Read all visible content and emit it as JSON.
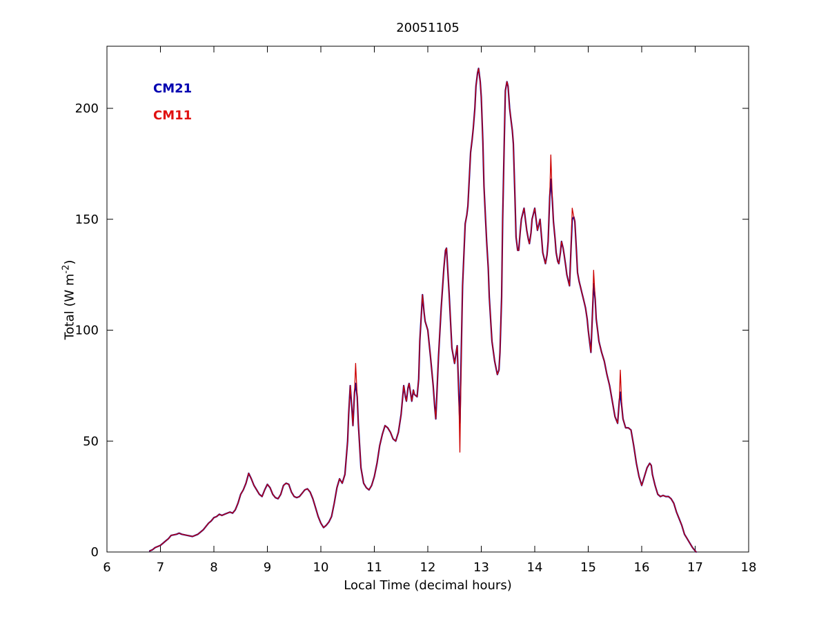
{
  "figure_bg": "#ffffff",
  "chart_data": {
    "type": "line",
    "title": "20051105",
    "xlabel": "Local Time (decimal hours)",
    "ylabel": {
      "prefix": "Total (W m",
      "sup": "-2",
      "suffix": ")"
    },
    "xlim": [
      6,
      18
    ],
    "ylim": [
      0,
      228
    ],
    "xticks": [
      6,
      7,
      8,
      9,
      10,
      11,
      12,
      13,
      14,
      15,
      16,
      17,
      18
    ],
    "yticks": [
      0,
      50,
      100,
      150,
      200
    ],
    "grid": false,
    "legend": {
      "position": "top-left-inside",
      "entries": [
        {
          "label": "CM21",
          "color": "#0000B0"
        },
        {
          "label": "CM11",
          "color": "#E01010"
        }
      ]
    },
    "x": [
      6.8,
      6.85,
      6.9,
      7.0,
      7.05,
      7.1,
      7.15,
      7.2,
      7.3,
      7.35,
      7.4,
      7.5,
      7.6,
      7.7,
      7.75,
      7.8,
      7.9,
      7.95,
      8.0,
      8.05,
      8.1,
      8.15,
      8.2,
      8.3,
      8.35,
      8.4,
      8.45,
      8.5,
      8.55,
      8.6,
      8.65,
      8.7,
      8.75,
      8.8,
      8.85,
      8.9,
      8.95,
      9.0,
      9.05,
      9.1,
      9.15,
      9.2,
      9.25,
      9.3,
      9.35,
      9.4,
      9.45,
      9.5,
      9.55,
      9.6,
      9.65,
      9.7,
      9.75,
      9.8,
      9.85,
      9.9,
      9.95,
      10.0,
      10.05,
      10.1,
      10.15,
      10.2,
      10.25,
      10.3,
      10.35,
      10.4,
      10.45,
      10.5,
      10.52,
      10.55,
      10.58,
      10.6,
      10.63,
      10.65,
      10.68,
      10.7,
      10.75,
      10.8,
      10.85,
      10.9,
      10.95,
      11.0,
      11.05,
      11.1,
      11.15,
      11.2,
      11.25,
      11.3,
      11.35,
      11.4,
      11.45,
      11.5,
      11.55,
      11.58,
      11.6,
      11.63,
      11.65,
      11.7,
      11.73,
      11.75,
      11.8,
      11.83,
      11.85,
      11.9,
      11.93,
      11.95,
      12.0,
      12.05,
      12.1,
      12.13,
      12.15,
      12.2,
      12.25,
      12.3,
      12.33,
      12.35,
      12.4,
      12.45,
      12.5,
      12.53,
      12.55,
      12.58,
      12.6,
      12.63,
      12.65,
      12.7,
      12.73,
      12.75,
      12.78,
      12.8,
      12.83,
      12.85,
      12.88,
      12.9,
      12.93,
      12.95,
      12.98,
      13.0,
      13.03,
      13.05,
      13.08,
      13.1,
      13.13,
      13.15,
      13.18,
      13.2,
      13.25,
      13.3,
      13.33,
      13.35,
      13.38,
      13.4,
      13.43,
      13.45,
      13.48,
      13.5,
      13.53,
      13.55,
      13.58,
      13.6,
      13.63,
      13.65,
      13.68,
      13.7,
      13.73,
      13.75,
      13.78,
      13.8,
      13.83,
      13.85,
      13.88,
      13.9,
      13.93,
      13.95,
      13.98,
      14.0,
      14.03,
      14.05,
      14.08,
      14.1,
      14.13,
      14.15,
      14.18,
      14.2,
      14.23,
      14.25,
      14.28,
      14.3,
      14.33,
      14.35,
      14.38,
      14.4,
      14.43,
      14.45,
      14.48,
      14.5,
      14.53,
      14.55,
      14.58,
      14.6,
      14.63,
      14.65,
      14.68,
      14.7,
      14.73,
      14.75,
      14.78,
      14.8,
      14.83,
      14.85,
      14.88,
      14.9,
      14.93,
      14.95,
      14.98,
      15.0,
      15.03,
      15.05,
      15.08,
      15.1,
      15.13,
      15.15,
      15.18,
      15.2,
      15.25,
      15.3,
      15.35,
      15.4,
      15.45,
      15.5,
      15.55,
      15.58,
      15.6,
      15.63,
      15.65,
      15.7,
      15.75,
      15.8,
      15.85,
      15.9,
      15.95,
      16.0,
      16.05,
      16.1,
      16.15,
      16.18,
      16.2,
      16.25,
      16.3,
      16.35,
      16.4,
      16.45,
      16.5,
      16.55,
      16.6,
      16.65,
      16.7,
      16.75,
      16.8,
      16.85,
      16.9,
      16.95,
      17.0,
      17.02
    ],
    "series": [
      {
        "name": "CM21",
        "color": "#0000A0",
        "values": [
          0.5,
          1,
          2,
          3,
          4,
          5,
          6,
          7.5,
          8,
          8.5,
          8,
          7.5,
          7,
          8,
          9,
          10,
          13,
          14,
          15.5,
          16,
          17,
          16.5,
          17,
          18,
          17.5,
          19,
          22,
          26,
          28,
          31,
          35.5,
          33,
          30,
          28,
          26,
          25,
          28,
          30.5,
          29,
          26,
          24.5,
          24,
          26,
          30,
          31,
          30.5,
          27,
          25,
          24.5,
          25,
          26.5,
          28,
          28.5,
          27,
          24,
          20,
          16,
          13,
          11,
          12,
          13.5,
          16,
          22,
          29,
          33,
          31,
          35,
          50,
          62,
          75,
          65,
          57,
          72,
          76,
          70,
          58,
          38,
          31,
          29,
          28,
          30,
          34,
          40,
          48,
          53,
          57,
          56,
          54,
          51,
          50,
          54,
          62,
          75,
          70,
          68,
          74,
          76,
          68,
          73,
          71,
          70,
          78,
          95,
          116,
          108,
          104,
          100,
          88,
          75,
          65,
          60,
          88,
          110,
          128,
          136,
          137,
          116,
          92,
          85,
          90,
          93,
          70,
          58,
          95,
          120,
          148,
          152,
          156,
          170,
          180,
          186,
          191,
          200,
          210,
          216,
          218,
          212,
          205,
          185,
          165,
          150,
          140,
          128,
          115,
          103,
          95,
          86,
          80,
          82,
          90,
          115,
          150,
          185,
          208,
          212,
          210,
          200,
          196,
          190,
          184,
          160,
          142,
          136,
          136,
          145,
          150,
          153,
          155,
          149,
          145,
          141,
          139,
          144,
          150,
          153,
          155,
          149,
          145,
          148,
          150,
          141,
          135,
          132,
          130,
          134,
          140,
          160,
          168,
          158,
          149,
          141,
          135,
          131,
          130,
          135,
          140,
          137,
          134,
          129,
          125,
          122,
          120,
          138,
          150,
          151,
          149,
          136,
          126,
          122,
          120,
          117,
          115,
          112,
          110,
          105,
          100,
          94,
          90,
          108,
          121,
          114,
          105,
          99,
          95,
          90,
          86,
          80,
          75,
          68,
          61,
          58,
          68,
          72,
          65,
          60,
          56,
          56,
          55,
          48,
          40,
          34,
          30,
          34,
          38,
          40,
          39,
          35,
          30,
          26,
          25,
          25.5,
          25,
          25,
          24,
          22,
          18,
          15,
          12,
          8,
          6,
          4,
          2,
          0.5,
          0
        ]
      },
      {
        "name": "CM11",
        "color": "#CC0000",
        "values": [
          0.5,
          1,
          2,
          3,
          4,
          5,
          6,
          7.5,
          8,
          8.5,
          8,
          7.5,
          7,
          8,
          9,
          10,
          13,
          14,
          15.5,
          16,
          17,
          16.5,
          17,
          18,
          17.5,
          19,
          22,
          26,
          28,
          31,
          35.5,
          33,
          30,
          28,
          26,
          25,
          28,
          30.5,
          29,
          26,
          24.5,
          24,
          26,
          30,
          31,
          30.5,
          27,
          25,
          24.5,
          25,
          26.5,
          28,
          28.5,
          27,
          24,
          20,
          16,
          13,
          11,
          12,
          13.5,
          16,
          22,
          29,
          33,
          31,
          35,
          50,
          62,
          75,
          65,
          57,
          72,
          85,
          70,
          58,
          38,
          31,
          29,
          28,
          30,
          34,
          40,
          48,
          53,
          57,
          56,
          54,
          51,
          50,
          54,
          62,
          75,
          70,
          68,
          74,
          76,
          68,
          73,
          71,
          70,
          78,
          95,
          116,
          108,
          104,
          100,
          88,
          75,
          65,
          60,
          88,
          110,
          128,
          136,
          137,
          116,
          92,
          85,
          90,
          93,
          70,
          45,
          95,
          120,
          148,
          152,
          156,
          170,
          180,
          186,
          191,
          200,
          210,
          216,
          218,
          212,
          205,
          185,
          165,
          150,
          140,
          128,
          115,
          103,
          95,
          86,
          80,
          82,
          90,
          115,
          150,
          185,
          208,
          212,
          210,
          200,
          196,
          190,
          184,
          160,
          142,
          136,
          136,
          145,
          150,
          153,
          155,
          149,
          145,
          141,
          139,
          144,
          150,
          153,
          155,
          149,
          145,
          148,
          150,
          141,
          135,
          132,
          130,
          134,
          140,
          160,
          179,
          158,
          149,
          141,
          135,
          131,
          130,
          135,
          140,
          137,
          134,
          129,
          125,
          122,
          120,
          138,
          155,
          151,
          149,
          136,
          126,
          122,
          120,
          117,
          115,
          112,
          110,
          105,
          100,
          94,
          90,
          108,
          127,
          114,
          105,
          99,
          95,
          90,
          86,
          80,
          75,
          68,
          61,
          58,
          68,
          82,
          65,
          60,
          56,
          56,
          55,
          48,
          40,
          34,
          30,
          34,
          38,
          40,
          39,
          35,
          30,
          26,
          25,
          25.5,
          25,
          25,
          24,
          22,
          18,
          15,
          12,
          8,
          6,
          4,
          2,
          0.5,
          0
        ]
      }
    ]
  }
}
